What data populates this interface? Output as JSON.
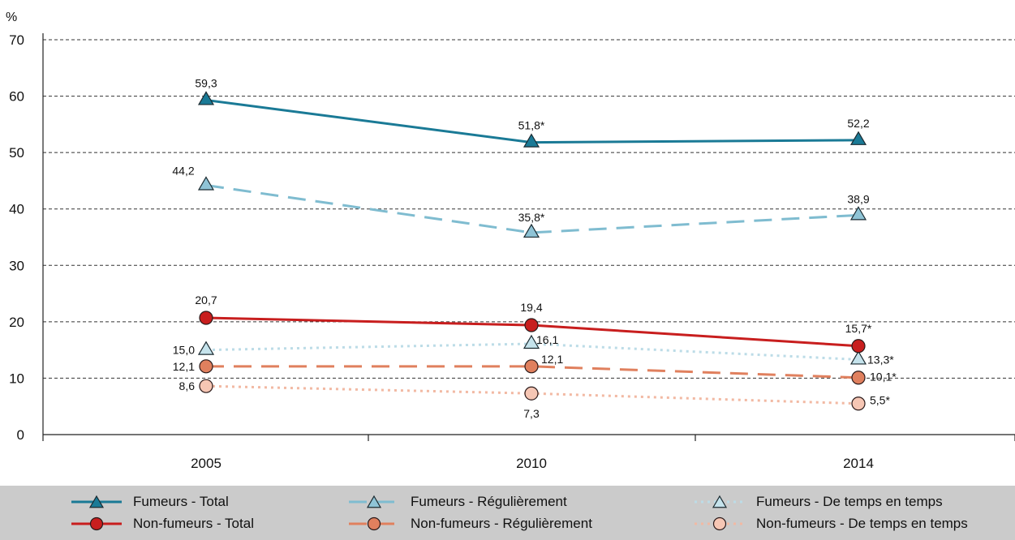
{
  "chart_data": {
    "type": "line",
    "unit_label": "%",
    "categories": [
      "2005",
      "2010",
      "2014"
    ],
    "ylim": [
      0,
      70
    ],
    "yticks": [
      "0",
      "10",
      "20",
      "30",
      "40",
      "50",
      "60",
      "70"
    ],
    "grid": true,
    "legend_position": "bottom",
    "series": [
      {
        "name": "Fumeurs - Total",
        "values": [
          59.3,
          51.8,
          52.2
        ],
        "labels": [
          "59,3",
          "51,8*",
          "52,2"
        ],
        "color": "#1a7a96",
        "marker": "triangle",
        "marker_fill": "#1a7a96",
        "dash": "solid",
        "width": 3
      },
      {
        "name": "Fumeurs - Régulièrement",
        "values": [
          44.2,
          35.8,
          38.9
        ],
        "labels": [
          "44,2",
          "35,8*",
          "38,9"
        ],
        "color": "#7fbcd0",
        "marker": "triangle",
        "marker_fill": "#8fc4d6",
        "dash": "long-dash",
        "width": 3
      },
      {
        "name": "Fumeurs - De temps en temps",
        "values": [
          15.0,
          16.1,
          13.3
        ],
        "labels": [
          "15,0",
          "16,1",
          "13,3*"
        ],
        "color": "#bcdce7",
        "marker": "triangle",
        "marker_fill": "#c5e3ec",
        "dash": "dot",
        "width": 3
      },
      {
        "name": "Non-fumeurs - Total",
        "values": [
          20.7,
          19.4,
          15.7
        ],
        "labels": [
          "20,7",
          "19,4",
          "15,7*"
        ],
        "color": "#c81e1e",
        "marker": "circle",
        "marker_fill": "#c81e1e",
        "dash": "solid",
        "width": 3
      },
      {
        "name": "Non-fumeurs - Régulièrement",
        "values": [
          12.1,
          12.1,
          10.1
        ],
        "labels": [
          "12,1",
          "12,1",
          "10,1*"
        ],
        "color": "#e0805e",
        "marker": "circle",
        "marker_fill": "#e0805e",
        "dash": "long-dash",
        "width": 3
      },
      {
        "name": "Non-fumeurs - De temps en temps",
        "values": [
          8.6,
          7.3,
          5.5
        ],
        "labels": [
          "8,6",
          "7,3",
          "5,5*"
        ],
        "color": "#f2b9a3",
        "marker": "circle",
        "marker_fill": "#f6c6b4",
        "dash": "dot",
        "width": 3
      }
    ]
  }
}
